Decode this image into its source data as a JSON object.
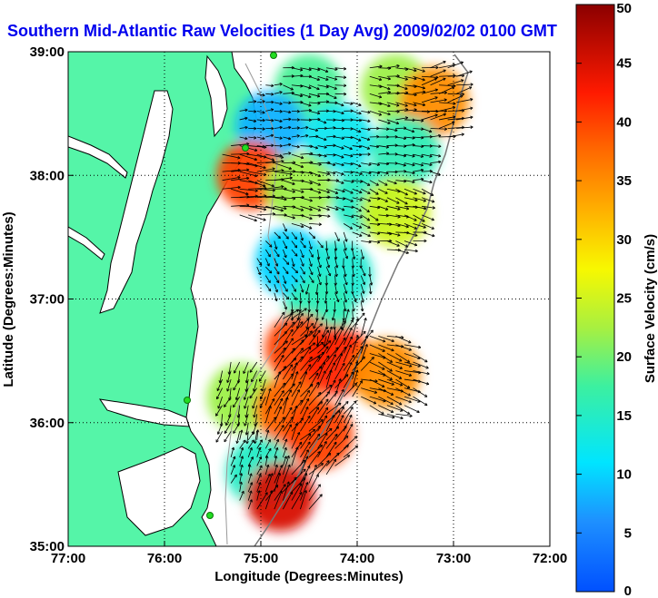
{
  "title": "Southern Mid-Atlantic Raw Velocities (1 Day Avg) 2009/02/02 0100 GMT",
  "map": {
    "xlabel": "Longitude (Degrees:Minutes)",
    "ylabel": "Latitude (Degrees:Minutes)",
    "xlim": [
      -77,
      -72
    ],
    "ylim": [
      35,
      39
    ],
    "x_ticks": [
      {
        "value": -77,
        "label": "77:00"
      },
      {
        "value": -76,
        "label": "76:00"
      },
      {
        "value": -75,
        "label": "75:00"
      },
      {
        "value": -74,
        "label": "74:00"
      },
      {
        "value": -73,
        "label": "73:00"
      },
      {
        "value": -72,
        "label": "72:00"
      }
    ],
    "y_ticks": [
      {
        "value": 35,
        "label": "35:00"
      },
      {
        "value": 36,
        "label": "36:00"
      },
      {
        "value": 37,
        "label": "37:00"
      },
      {
        "value": 38,
        "label": "38:00"
      },
      {
        "value": 39,
        "label": "39:00"
      }
    ],
    "grid": "dotted",
    "land_color": "#55f5a8",
    "coast_color": "#000000",
    "arrow_color": "#000000",
    "site_marker_color": "#22dd22"
  },
  "colorbar": {
    "label": "Surface Velocity (cm/s)",
    "min": 0,
    "max": 50,
    "ticks": [
      {
        "value": 0,
        "label": "0"
      },
      {
        "value": 5,
        "label": "5"
      },
      {
        "value": 10,
        "label": "10"
      },
      {
        "value": 15,
        "label": "15"
      },
      {
        "value": 20,
        "label": "20"
      },
      {
        "value": 25,
        "label": "25"
      },
      {
        "value": 30,
        "label": "30"
      },
      {
        "value": 35,
        "label": "35"
      },
      {
        "value": 40,
        "label": "40"
      },
      {
        "value": 45,
        "label": "45"
      },
      {
        "value": 50,
        "label": "50"
      }
    ],
    "colormap": "jet"
  },
  "chart_data": {
    "type": "heatmap",
    "title": "Southern Mid-Atlantic Raw Velocities (1 Day Avg) 2009/02/02 0100 GMT",
    "xlabel": "Longitude (Degrees:Minutes)",
    "ylabel": "Latitude (Degrees:Minutes)",
    "xlim": [
      -77,
      -72
    ],
    "ylim": [
      35,
      39
    ],
    "value_range": [
      0,
      50
    ],
    "value_label": "Surface Velocity (cm/s)",
    "regions": [
      {
        "lon": -74.5,
        "lat": 38.7,
        "speed": 18,
        "direction_deg": 100
      },
      {
        "lon": -73.6,
        "lat": 38.7,
        "speed": 22,
        "direction_deg": 95
      },
      {
        "lon": -73.2,
        "lat": 38.6,
        "speed": 35,
        "direction_deg": 80
      },
      {
        "lon": -74.9,
        "lat": 38.4,
        "speed": 8,
        "direction_deg": 90
      },
      {
        "lon": -74.2,
        "lat": 38.3,
        "speed": 12,
        "direction_deg": 100
      },
      {
        "lon": -73.5,
        "lat": 38.2,
        "speed": 16,
        "direction_deg": 95
      },
      {
        "lon": -75.1,
        "lat": 38.0,
        "speed": 40,
        "direction_deg": 95
      },
      {
        "lon": -74.6,
        "lat": 37.9,
        "speed": 22,
        "direction_deg": 100
      },
      {
        "lon": -73.9,
        "lat": 37.8,
        "speed": 15,
        "direction_deg": 110
      },
      {
        "lon": -73.6,
        "lat": 37.7,
        "speed": 25,
        "direction_deg": 105
      },
      {
        "lon": -74.7,
        "lat": 37.3,
        "speed": 10,
        "direction_deg": 150
      },
      {
        "lon": -74.2,
        "lat": 37.2,
        "speed": 14,
        "direction_deg": 170
      },
      {
        "lon": -74.4,
        "lat": 36.9,
        "speed": 16,
        "direction_deg": 190
      },
      {
        "lon": -74.6,
        "lat": 36.6,
        "speed": 40,
        "direction_deg": 45
      },
      {
        "lon": -74.2,
        "lat": 36.5,
        "speed": 42,
        "direction_deg": 30
      },
      {
        "lon": -73.7,
        "lat": 36.4,
        "speed": 35,
        "direction_deg": 110
      },
      {
        "lon": -75.2,
        "lat": 36.2,
        "speed": 22,
        "direction_deg": 200
      },
      {
        "lon": -74.7,
        "lat": 36.1,
        "speed": 38,
        "direction_deg": 30
      },
      {
        "lon": -74.4,
        "lat": 35.9,
        "speed": 40,
        "direction_deg": 40
      },
      {
        "lon": -75.0,
        "lat": 35.6,
        "speed": 15,
        "direction_deg": 20
      },
      {
        "lon": -74.8,
        "lat": 35.4,
        "speed": 45,
        "direction_deg": 30
      }
    ]
  }
}
